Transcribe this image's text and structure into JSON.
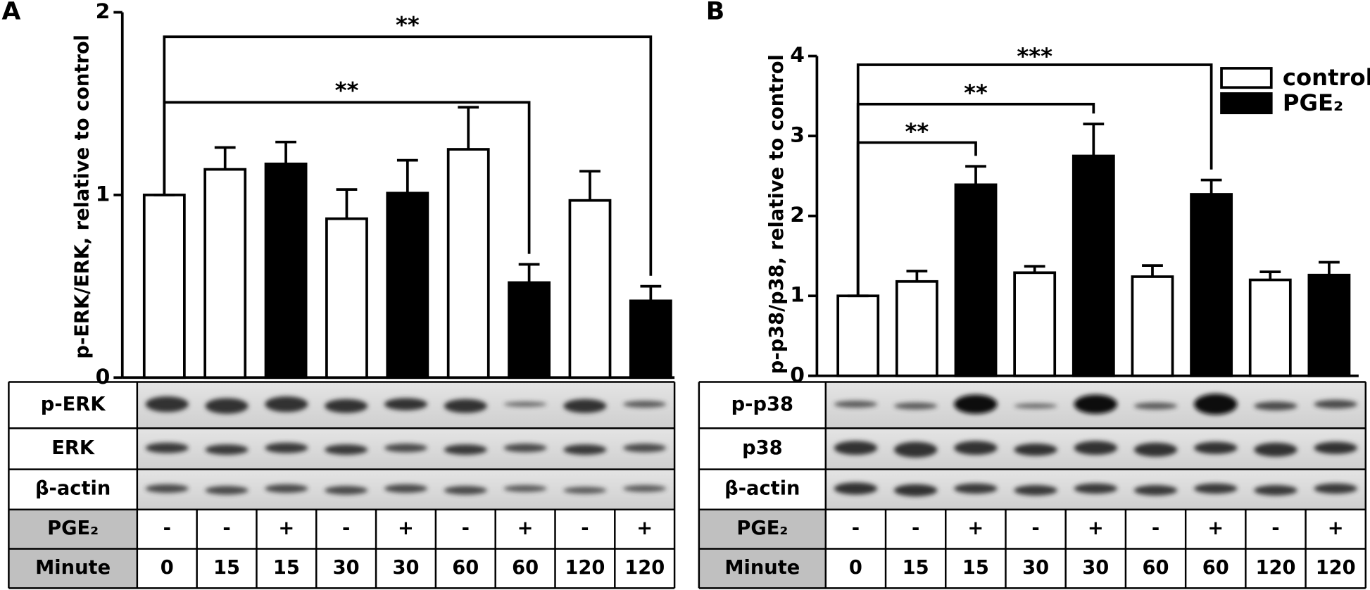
{
  "chart_data": [
    {
      "type": "bar",
      "panel": "A",
      "ylabel": "p-ERK/ERK, relative to control",
      "ylim": [
        0,
        2
      ],
      "yticks": [
        0,
        1,
        2
      ],
      "series": [
        {
          "color": "#ffffff",
          "values": [
            1,
            1.14,
            null,
            0.87,
            null,
            1.25,
            null,
            0.97,
            null
          ],
          "errors": [
            0,
            0.12,
            null,
            0.16,
            null,
            0.23,
            null,
            0.16,
            null
          ]
        },
        {
          "color": "#000000",
          "values": [
            null,
            null,
            1.17,
            null,
            1.01,
            null,
            0.52,
            null,
            0.42
          ],
          "errors": [
            null,
            null,
            0.12,
            null,
            0.18,
            null,
            0.1,
            null,
            0.08
          ]
        }
      ],
      "annotations": [
        "**",
        "**"
      ],
      "blot_labels": [
        "p-ERK",
        "ERK",
        "β-actin"
      ],
      "treatment": {
        "label": "PGE₂",
        "values": [
          "-",
          "-",
          "+",
          "-",
          "+",
          "-",
          "+",
          "-",
          "+"
        ]
      },
      "time": {
        "label": "Minute",
        "values": [
          0,
          15,
          15,
          30,
          30,
          60,
          60,
          120,
          120
        ]
      }
    },
    {
      "type": "bar",
      "panel": "B",
      "ylabel": "p-p38/p38, relative to control",
      "ylim": [
        0,
        4
      ],
      "yticks": [
        0,
        1,
        2,
        3,
        4
      ],
      "legend": true,
      "series": [
        {
          "name": "control",
          "color": "#ffffff",
          "values": [
            1,
            1.18,
            null,
            1.29,
            null,
            1.24,
            null,
            1.2,
            null
          ],
          "errors": [
            0,
            0.13,
            null,
            0.08,
            null,
            0.14,
            null,
            0.1,
            null
          ]
        },
        {
          "name": "PGE₂",
          "color": "#000000",
          "values": [
            null,
            null,
            2.39,
            null,
            2.75,
            null,
            2.27,
            null,
            1.26
          ],
          "errors": [
            null,
            null,
            0.23,
            null,
            0.4,
            null,
            0.18,
            null,
            0.16
          ]
        }
      ],
      "annotations": [
        "***",
        "**",
        "**"
      ],
      "blot_labels": [
        "p-p38",
        "p38",
        "β-actin"
      ],
      "treatment": {
        "label": "PGE₂",
        "values": [
          "-",
          "-",
          "+",
          "-",
          "+",
          "-",
          "+",
          "-",
          "+"
        ]
      },
      "time": {
        "label": "Minute",
        "values": [
          0,
          15,
          15,
          30,
          30,
          60,
          60,
          120,
          120
        ]
      }
    }
  ]
}
